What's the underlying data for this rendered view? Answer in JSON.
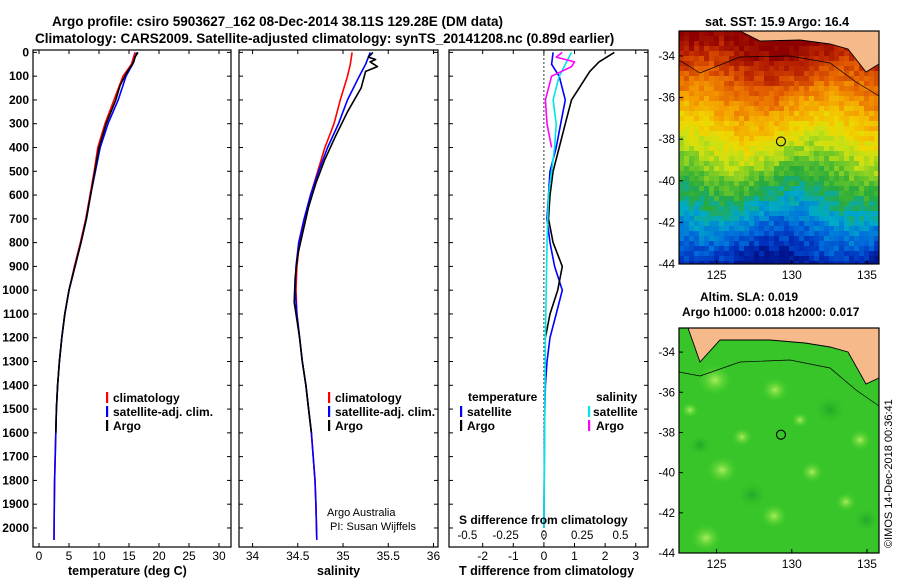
{
  "header": {
    "line1": "Argo profile: csiro 5903627_162 08-Dec-2014 38.11S 129.28E (DM data)",
    "line2": "Climatology: CARS2009. Satellite-adjusted climatology: synTS_20141208.nc (0.89d earlier)"
  },
  "credit": {
    "line1": "Argo Australia",
    "line2": "PI: Susan Wijffels"
  },
  "footer": "©IMOS 14-Dec-2018 00:36:41",
  "colors": {
    "climatology": "#ff0000",
    "satellite": "#0000ff",
    "argo": "#000000",
    "sat_temperature": "#0000ff",
    "sat_salinity": "#00e5e5",
    "argo_salinity": "#ff00ff",
    "land": "#f5b98a"
  },
  "chart_data": [
    {
      "type": "line",
      "id": "temperature",
      "xlabel": "temperature (deg C)",
      "ylabel": "",
      "xlim": [
        -1,
        32
      ],
      "ylim": [
        2080,
        -10
      ],
      "xticks": [
        0,
        5,
        10,
        15,
        20,
        25,
        30
      ],
      "xtick_labels": [
        "0",
        "5",
        "10",
        "15",
        "20",
        "25",
        "30"
      ],
      "yticks": [
        0,
        100,
        200,
        300,
        400,
        500,
        600,
        700,
        800,
        900,
        1000,
        1100,
        1200,
        1300,
        1400,
        1500,
        1600,
        1700,
        1800,
        1900,
        2000
      ],
      "ytick_labels": [
        "0",
        "100",
        "200",
        "300",
        "400",
        "500",
        "600",
        "700",
        "800",
        "900",
        "1000",
        "1100",
        "1200",
        "1300",
        "1400",
        "1500",
        "1600",
        "1700",
        "1800",
        "1900",
        "2000"
      ],
      "legend": [
        "climatology",
        "satellite-adj. clim.",
        "Argo"
      ],
      "series": [
        {
          "name": "climatology",
          "color": "#ff0000",
          "x": [
            16.0,
            15.4,
            14.0,
            12.5,
            11.0,
            9.8,
            9.2,
            8.5,
            7.8,
            6.9,
            5.9,
            5.0,
            4.3,
            3.8,
            3.4,
            3.1,
            2.9,
            2.8,
            2.7,
            2.6,
            2.55,
            2.5
          ],
          "y": [
            0,
            50,
            100,
            200,
            300,
            400,
            500,
            600,
            700,
            800,
            900,
            1000,
            1100,
            1200,
            1300,
            1400,
            1500,
            1600,
            1700,
            1800,
            1900,
            2050
          ]
        },
        {
          "name": "satellite-adj. clim.",
          "color": "#0000ff",
          "x": [
            16.3,
            15.6,
            14.5,
            13.2,
            11.5,
            10.2,
            9.4,
            8.6,
            7.9,
            7.0,
            6.0,
            5.0,
            4.3,
            3.8,
            3.4,
            3.1,
            2.9,
            2.8,
            2.7,
            2.6,
            2.55,
            2.5
          ],
          "y": [
            0,
            50,
            100,
            200,
            300,
            400,
            500,
            600,
            700,
            800,
            900,
            1000,
            1100,
            1200,
            1300,
            1400,
            1500,
            1600,
            1700,
            1800,
            1900,
            2050
          ]
        },
        {
          "name": "Argo",
          "color": "#000000",
          "x": [
            16.5,
            16.0,
            15.8,
            14.5,
            13.5,
            12.8,
            11.2,
            10.0,
            9.3,
            8.6,
            7.9,
            7.0,
            6.0,
            5.0,
            4.3,
            3.8,
            3.4,
            3.1,
            2.9,
            2.8
          ],
          "y": [
            0,
            20,
            40,
            90,
            140,
            200,
            300,
            400,
            500,
            600,
            700,
            800,
            900,
            1000,
            1100,
            1200,
            1300,
            1400,
            1500,
            1600
          ]
        }
      ]
    },
    {
      "type": "line",
      "id": "salinity",
      "xlabel": "salinity",
      "ylabel": "",
      "xlim": [
        33.85,
        36.05
      ],
      "ylim": [
        2080,
        -10
      ],
      "xticks": [
        34,
        34.5,
        35,
        35.5,
        36
      ],
      "xtick_labels": [
        "34",
        "34.5",
        "35",
        "35.5",
        "36"
      ],
      "legend": [
        "climatology",
        "satellite-adj. clim.",
        "Argo"
      ],
      "series": [
        {
          "name": "climatology",
          "color": "#ff0000",
          "x": [
            35.1,
            35.08,
            35.05,
            34.97,
            34.9,
            34.8,
            34.72,
            34.64,
            34.58,
            34.52,
            34.49,
            34.48,
            34.49,
            34.52,
            34.55,
            34.59,
            34.62,
            34.65,
            34.67,
            34.69,
            34.7,
            34.71
          ],
          "y": [
            0,
            50,
            100,
            200,
            300,
            400,
            500,
            600,
            700,
            800,
            900,
            1000,
            1100,
            1200,
            1300,
            1400,
            1500,
            1600,
            1700,
            1800,
            1900,
            2050
          ]
        },
        {
          "name": "satellite-adj. clim.",
          "color": "#0000ff",
          "x": [
            35.3,
            35.25,
            35.18,
            35.05,
            34.95,
            34.83,
            34.73,
            34.64,
            34.57,
            34.51,
            34.48,
            34.47,
            34.49,
            34.52,
            34.55,
            34.59,
            34.62,
            34.65,
            34.67,
            34.69,
            34.7,
            34.71
          ],
          "y": [
            0,
            50,
            100,
            200,
            300,
            400,
            500,
            600,
            700,
            800,
            900,
            1000,
            1100,
            1200,
            1300,
            1400,
            1500,
            1600,
            1700,
            1800,
            1900,
            2050
          ]
        },
        {
          "name": "Argo",
          "color": "#000000",
          "x": [
            35.33,
            35.28,
            35.36,
            35.3,
            35.38,
            35.25,
            35.2,
            35.05,
            34.92,
            34.8,
            34.7,
            34.62,
            34.56,
            34.5,
            34.47,
            34.46,
            34.48,
            34.52,
            34.55,
            34.59,
            34.62,
            34.65
          ],
          "y": [
            0,
            20,
            30,
            40,
            60,
            80,
            150,
            250,
            350,
            450,
            550,
            650,
            750,
            850,
            950,
            1050,
            1100,
            1200,
            1300,
            1400,
            1500,
            1600
          ]
        }
      ]
    },
    {
      "type": "line",
      "id": "difference",
      "xlabel": "T difference from climatology",
      "xlabel2": "S difference from climatology",
      "xlim": [
        -3.1,
        3.4
      ],
      "xlim_salinity": [
        -0.62,
        0.68
      ],
      "ylim": [
        2080,
        -10
      ],
      "xticks": [
        -2,
        -1,
        0,
        1,
        2,
        3
      ],
      "xtick_labels": [
        "-2",
        "-1",
        "0",
        "1",
        "2",
        "3"
      ],
      "xticks_salinity": [
        -0.5,
        -0.25,
        0,
        0.25,
        0.5
      ],
      "xtick_labels_salinity": [
        "-0.5",
        "-0.25",
        "0",
        "0.25",
        "0.5"
      ],
      "legend_titles": [
        "temperature",
        "salinity"
      ],
      "legend": [
        "satellite",
        "Argo",
        "satellite",
        "Argo"
      ],
      "series": [
        {
          "name": "temperature satellite",
          "color": "#0000ff",
          "x": [
            0.3,
            0.25,
            0.5,
            0.7,
            0.55,
            0.4,
            0.2,
            0.15,
            0.1,
            0.2,
            0.35,
            0.6,
            0.4,
            0.2,
            0.1,
            0.05,
            0.03,
            0.02,
            0.01,
            0.0
          ],
          "y": [
            0,
            50,
            100,
            200,
            300,
            400,
            500,
            600,
            700,
            800,
            900,
            1000,
            1100,
            1200,
            1300,
            1400,
            1500,
            1600,
            1800,
            2000
          ]
        },
        {
          "name": "temperature Argo",
          "color": "#000000",
          "x": [
            2.3,
            1.8,
            1.5,
            1.3,
            0.9,
            0.7,
            0.5,
            0.3,
            0.2,
            0.15,
            0.3,
            0.6,
            0.45,
            0.2,
            0.05
          ],
          "y": [
            0,
            40,
            80,
            120,
            200,
            300,
            400,
            500,
            600,
            700,
            800,
            900,
            1000,
            1100,
            1200
          ]
        },
        {
          "name": "salinity satellite",
          "color": "#00e5e5",
          "x": [
            0.18,
            0.1,
            0.06,
            0.08,
            0.07,
            0.05,
            0.03,
            0.02,
            0.01,
            0.0
          ],
          "y": [
            0,
            100,
            200,
            300,
            400,
            500,
            600,
            800,
            1200,
            2000
          ]
        },
        {
          "name": "salinity Argo",
          "color": "#ff00ff",
          "x": [
            0.12,
            0.08,
            0.2,
            0.18,
            0.05,
            0.01,
            0.02,
            0.05
          ],
          "y": [
            0,
            20,
            40,
            60,
            100,
            200,
            300,
            400
          ]
        }
      ]
    },
    {
      "type": "heatmap",
      "id": "sst-map",
      "title": "sat. SST: 15.9 Argo: 16.4",
      "xlim": [
        122.5,
        135.8
      ],
      "ylim": [
        -44,
        -32.8
      ],
      "xticks": [
        125,
        130,
        135
      ],
      "xtick_labels": [
        "125",
        "130",
        "135"
      ],
      "yticks": [
        -34,
        -36,
        -38,
        -40,
        -42,
        -44
      ],
      "ytick_labels": [
        "-34",
        "-36",
        "-38",
        "-40",
        "-42",
        "-44"
      ],
      "marker": {
        "lon": 129.28,
        "lat": -38.11
      }
    },
    {
      "type": "heatmap",
      "id": "sla-map",
      "title": "Altim. SLA: 0.019",
      "subtitle": "Argo h1000: 0.018 h2000: 0.017",
      "xlim": [
        122.5,
        135.8
      ],
      "ylim": [
        -44,
        -32.8
      ],
      "xticks": [
        125,
        130,
        135
      ],
      "xtick_labels": [
        "125",
        "130",
        "135"
      ],
      "yticks": [
        -34,
        -36,
        -38,
        -40,
        -42,
        -44
      ],
      "ytick_labels": [
        "-34",
        "-36",
        "-38",
        "-40",
        "-42",
        "-44"
      ],
      "marker": {
        "lon": 129.28,
        "lat": -38.11
      }
    }
  ]
}
